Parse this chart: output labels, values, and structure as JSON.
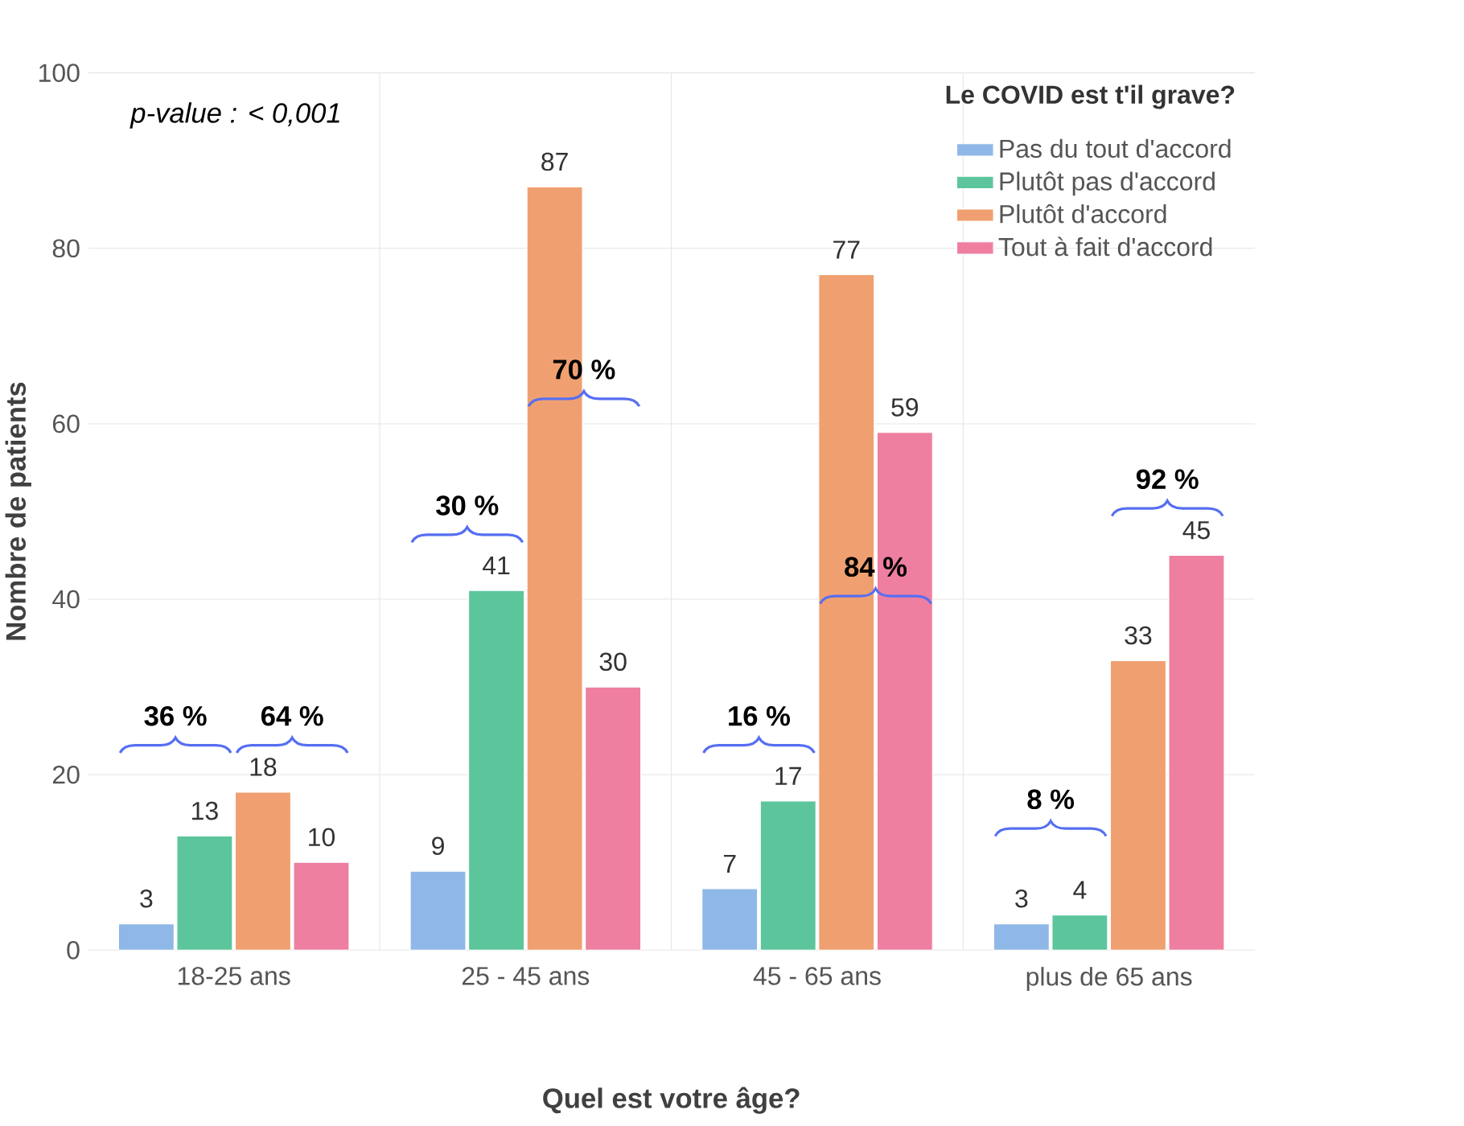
{
  "chart_data": {
    "type": "bar",
    "xlabel": "Quel est votre âge?",
    "ylabel": "Nombre de patients",
    "legend_title": "Le COVID est t'il grave?",
    "categories": [
      "18-25 ans",
      "25 - 45 ans",
      "45 - 65 ans",
      "plus de 65 ans"
    ],
    "series": [
      {
        "name": "Pas du tout d'accord",
        "color": "#8fb8e8",
        "values": [
          3,
          9,
          7,
          3
        ]
      },
      {
        "name": "Plutôt pas d'accord",
        "color": "#5cc59b",
        "values": [
          13,
          41,
          17,
          4
        ]
      },
      {
        "name": "Plutôt d'accord",
        "color": "#f0a070",
        "values": [
          18,
          87,
          77,
          33
        ]
      },
      {
        "name": "Tout à fait d'accord",
        "color": "#ee7fa0",
        "values": [
          10,
          30,
          59,
          45
        ]
      }
    ],
    "ylim": [
      0,
      100
    ],
    "yticks": [
      0,
      20,
      40,
      60,
      80,
      100
    ],
    "grid": true,
    "legend": "top right",
    "data_labels": true,
    "annotations": [
      "*p-value : < 0,001*",
      "**36 %**",
      "**64 %**",
      "**30 %**",
      "**70 %**",
      "**16 %**",
      "**84 %**",
      "**8 %**",
      "**92 %**"
    ]
  }
}
